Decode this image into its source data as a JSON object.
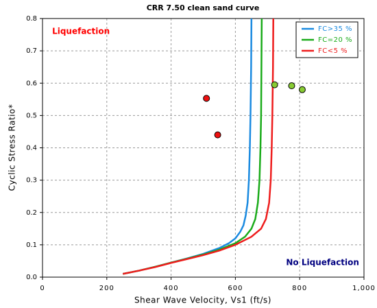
{
  "chart_data": {
    "type": "line",
    "title": "CRR 7.50 clean sand curve",
    "x_label": "Shear Wave Velocity, Vs1 (ft/s)",
    "y_label": "Cyclic Stress Ratio*",
    "annotations": [
      {
        "text": "Liquefaction",
        "color": "#ff0000",
        "x": 30,
        "y": 0.76
      },
      {
        "text": "No Liquefaction",
        "color": "#000080",
        "x": 985,
        "y": 0.045
      }
    ],
    "xlim": [
      0,
      1000
    ],
    "ylim": [
      0,
      0.8
    ],
    "xticks": [
      0,
      200,
      400,
      600,
      800,
      {
        "value": 1000,
        "label": "1,000"
      }
    ],
    "yticks": [
      {
        "value": 0,
        "label": "0.0"
      },
      0.1,
      0.2,
      0.3,
      0.4,
      0.5,
      0.6,
      0.7,
      0.8
    ],
    "grid": true,
    "legend": "upper right",
    "series": [
      {
        "name": "FC>35 %",
        "color": "#1a8ae0",
        "x": [
          250,
          300,
          350,
          400,
          450,
          500,
          550,
          580,
          600,
          615,
          625,
          632,
          638,
          642,
          645,
          647,
          649,
          650
        ],
        "values": [
          0.01,
          0.02,
          0.032,
          0.045,
          0.058,
          0.072,
          0.09,
          0.105,
          0.12,
          0.14,
          0.16,
          0.19,
          0.23,
          0.3,
          0.4,
          0.5,
          0.65,
          0.8
        ]
      },
      {
        "name": "FC=20 %",
        "color": "#1aab1a",
        "x": [
          250,
          300,
          350,
          400,
          450,
          500,
          550,
          600,
          630,
          650,
          662,
          670,
          675,
          678,
          680,
          681,
          682
        ],
        "values": [
          0.01,
          0.02,
          0.032,
          0.045,
          0.057,
          0.07,
          0.085,
          0.105,
          0.125,
          0.15,
          0.18,
          0.23,
          0.3,
          0.4,
          0.5,
          0.65,
          0.8
        ]
      },
      {
        "name": "FC<5 %",
        "color": "#ee1c1c",
        "x": [
          250,
          300,
          350,
          400,
          450,
          500,
          550,
          600,
          650,
          680,
          695,
          705,
          710,
          713,
          715,
          717,
          718
        ],
        "values": [
          0.01,
          0.02,
          0.031,
          0.044,
          0.056,
          0.068,
          0.082,
          0.1,
          0.125,
          0.15,
          0.18,
          0.23,
          0.3,
          0.4,
          0.5,
          0.65,
          0.8
        ]
      }
    ],
    "points": [
      {
        "color": "#ee1111",
        "x": [
          510,
          545
        ],
        "values": [
          0.553,
          0.44
        ]
      },
      {
        "color": "#88cc33",
        "x": [
          722,
          775,
          808
        ],
        "values": [
          0.595,
          0.592,
          0.58
        ]
      }
    ]
  }
}
